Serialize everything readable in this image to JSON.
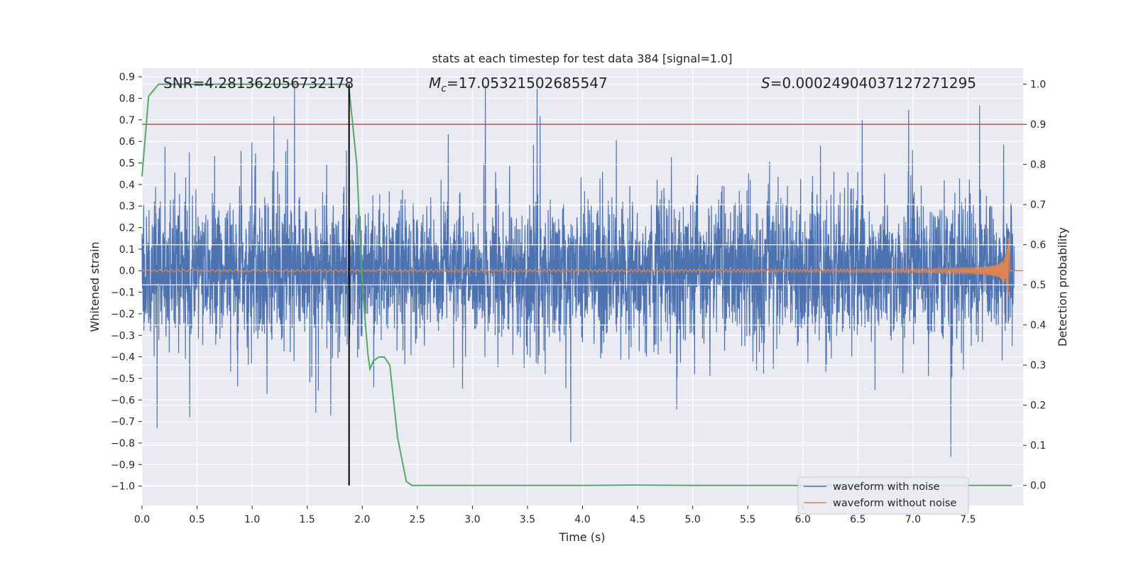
{
  "chart_data": {
    "type": "line",
    "title": "stats at each timestep for test data 384 [signal=1.0]",
    "xlabel": "Time (s)",
    "ylabel": "Whitened strain",
    "y2label": "Detection probability",
    "xlim": [
      0.0,
      8.0
    ],
    "ylim": [
      -1.09,
      0.94
    ],
    "y2lim": [
      -0.05,
      1.04
    ],
    "x_ticks": [
      "0.0",
      "0.5",
      "1.0",
      "1.5",
      "2.0",
      "2.5",
      "3.0",
      "3.5",
      "4.0",
      "4.5",
      "5.0",
      "5.5",
      "6.0",
      "6.5",
      "7.0",
      "7.5"
    ],
    "y_ticks": [
      "0.9",
      "0.8",
      "0.7",
      "0.6",
      "0.5",
      "0.4",
      "0.3",
      "0.2",
      "0.1",
      "0.0",
      "−0.1",
      "−0.2",
      "−0.3",
      "−0.4",
      "−0.5",
      "−0.6",
      "−0.7",
      "−0.8",
      "−0.9",
      "−1.0"
    ],
    "y2_ticks": [
      "1.0",
      "0.9",
      "0.8",
      "0.7",
      "0.6",
      "0.5",
      "0.4",
      "0.3",
      "0.2",
      "0.1",
      "0.0"
    ],
    "grid": true,
    "legend_position": "lower-right",
    "annotations": {
      "snr": "SNR=4.281362056732178",
      "mc_symbol": "M",
      "mc_subscript": "c",
      "mc_value": "=17.05321502685547",
      "s_symbol": "S",
      "s_value": "=0.00024904037127271295"
    },
    "series": [
      {
        "name": "waveform with noise",
        "color": "#4c72b0",
        "axis": "left",
        "kind": "noise",
        "duration": 7.92,
        "samples": 4096,
        "base_sigma": 0.16
      },
      {
        "name": "waveform without noise",
        "color": "#dd8452",
        "axis": "left",
        "kind": "chirp",
        "t_merger": 7.87,
        "peak_amplitude": 0.16
      },
      {
        "axis": "right",
        "color": "#55a868",
        "kind": "probability",
        "x": [
          0.0,
          0.06,
          0.15,
          0.5,
          1.0,
          1.5,
          1.84,
          1.88,
          1.95,
          2.0,
          2.05,
          2.07,
          2.1,
          2.15,
          2.2,
          2.25,
          2.32,
          2.4,
          2.45,
          3.0,
          4.0,
          4.5,
          5.0,
          6.0,
          7.0,
          7.9
        ],
        "y": [
          0.77,
          0.97,
          1.0,
          1.0,
          1.0,
          1.0,
          1.0,
          0.99,
          0.8,
          0.5,
          0.33,
          0.29,
          0.31,
          0.32,
          0.32,
          0.3,
          0.12,
          0.01,
          0.0,
          0.0,
          0.0,
          0.001,
          0.0,
          0.0,
          0.0,
          0.0
        ]
      }
    ],
    "hlines": [
      {
        "axis": "right",
        "value": 0.9,
        "color": "#c44e52"
      }
    ],
    "vlines": [
      {
        "x": 1.88,
        "color": "#000000",
        "y2_from": 0.0,
        "y2_to": 1.0
      }
    ]
  }
}
